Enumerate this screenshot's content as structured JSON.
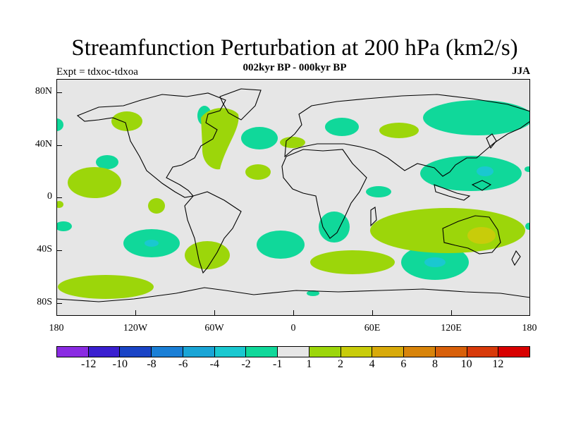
{
  "title": "Streamfunction Perturbation at 200 hPa (km2/s)",
  "subtitle": "002kyr BP - 000kyr BP",
  "left_label": "Expt = tdxoc-tdxoa",
  "right_label": "JJA",
  "y_axis_ticks": [
    "80N",
    "40N",
    "0",
    "40S",
    "80S"
  ],
  "x_axis_ticks": [
    "180",
    "120W",
    "60W",
    "0",
    "60E",
    "120E",
    "180"
  ],
  "colorbar": {
    "colors": [
      "#8a2be2",
      "#3a1fd0",
      "#1a44c6",
      "#1a7fd6",
      "#1aa5d6",
      "#1ac8d0",
      "#10d89a",
      "#e6e6e6",
      "#9cd60a",
      "#c8cc0a",
      "#d8aa0a",
      "#d8840a",
      "#d8600a",
      "#d83a0a",
      "#d80000"
    ],
    "labels": [
      "-12",
      "-10",
      "-8",
      "-6",
      "-4",
      "-2",
      "-1",
      "1",
      "2",
      "4",
      "6",
      "8",
      "10",
      "12"
    ]
  },
  "fills": {
    "neg_light": "#10d89a",
    "neg_mid": "#1ac8d0",
    "pos_light": "#9cd60a",
    "pos_mid": "#c8cc0a"
  }
}
